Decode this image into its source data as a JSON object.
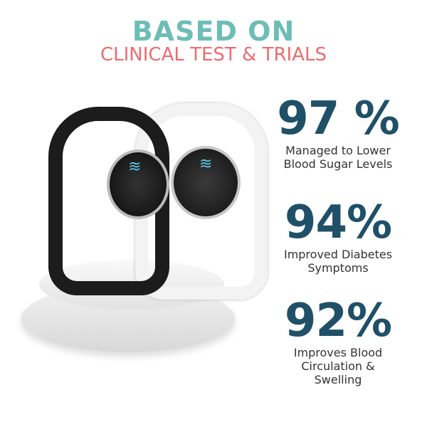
{
  "header": {
    "title": "BASED ON",
    "subtitle": "CLINICAL TEST & TRIALS"
  },
  "stats": [
    {
      "value": "97 %",
      "label_lines": [
        "Managed to Lower",
        "Blood Sugar Levels"
      ]
    },
    {
      "value": "94%",
      "label_lines": [
        "Improved Diabetes",
        "Symptoms"
      ]
    },
    {
      "value": "92%",
      "label_lines": [
        "Improves Blood",
        "Circulation &",
        "Swelling"
      ]
    }
  ],
  "colors": {
    "title": "#6dbdb6",
    "subtitle": "#ee6b6e",
    "stat": "#1f5068",
    "text": "#333333"
  },
  "product": {
    "icons": [
      "black-wristband",
      "white-wristband",
      "pedestal"
    ]
  }
}
